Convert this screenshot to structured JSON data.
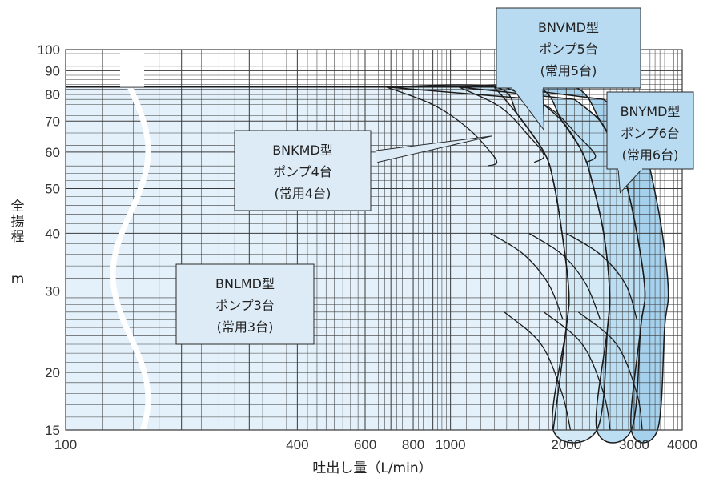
{
  "chart_data": {
    "type": "area",
    "title": "",
    "xlabel": "吐出し量（L/min）",
    "ylabel_chars": [
      "全",
      "揚",
      "程"
    ],
    "ylabel_unit": "m",
    "x_scale": "log",
    "y_scale": "log",
    "xlim": [
      100,
      4000
    ],
    "ylim": [
      15,
      100
    ],
    "x_tick_labels": [
      {
        "value": 100,
        "label": "100"
      },
      {
        "value": 400,
        "label": "400"
      },
      {
        "value": 600,
        "label": "600"
      },
      {
        "value": 800,
        "label": "800"
      },
      {
        "value": 1000,
        "label": "1000"
      },
      {
        "value": 2000,
        "label": "2000"
      },
      {
        "value": 3000,
        "label": "3000"
      },
      {
        "value": 4000,
        "label": "4000"
      }
    ],
    "y_tick_labels": [
      {
        "value": 15,
        "label": "15"
      },
      {
        "value": 20,
        "label": "20"
      },
      {
        "value": 30,
        "label": "30"
      },
      {
        "value": 40,
        "label": "40"
      },
      {
        "value": 50,
        "label": "50"
      },
      {
        "value": 60,
        "label": "60"
      },
      {
        "value": 70,
        "label": "70"
      },
      {
        "value": 80,
        "label": "80"
      },
      {
        "value": 90,
        "label": "90"
      },
      {
        "value": 100,
        "label": "100"
      }
    ],
    "grid": true,
    "axis_break": true,
    "bands": [
      {
        "name": "BNLMD",
        "color": "#e4f1fa",
        "h_max": 83,
        "top_curve": [
          [
            100,
            83
          ],
          [
            1300,
            83
          ]
        ],
        "tail": [
          [
            1300,
            83
          ],
          [
            1500,
            72
          ],
          [
            1750,
            60
          ],
          [
            1850,
            52
          ],
          [
            1950,
            40
          ],
          [
            2030,
            30
          ],
          [
            2000,
            25
          ],
          [
            1850,
            15
          ]
        ]
      },
      {
        "name": "BNKMD",
        "color": "#d3e9f6",
        "h_max": 83,
        "outline": [
          [
            680,
            83
          ],
          [
            1300,
            83
          ],
          [
            1500,
            72
          ],
          [
            1750,
            60
          ],
          [
            1850,
            52
          ],
          [
            1950,
            40
          ],
          [
            2030,
            30
          ],
          [
            2000,
            25
          ],
          [
            1850,
            15
          ],
          [
            2400,
            15
          ],
          [
            2560,
            25
          ],
          [
            2590,
            30
          ],
          [
            2500,
            40
          ],
          [
            2330,
            52
          ],
          [
            2200,
            60
          ],
          [
            1950,
            70
          ],
          [
            1680,
            78
          ]
        ],
        "curves": [
          [
            [
              680,
              83
            ],
            [
              900,
              76
            ],
            [
              1100,
              68
            ],
            [
              1250,
              61
            ],
            [
              1320,
              57
            ],
            [
              1250,
              56
            ]
          ],
          [
            [
              1270,
              40
            ],
            [
              1550,
              36
            ],
            [
              1800,
              31
            ],
            [
              1960,
              26
            ]
          ],
          [
            [
              1380,
              27
            ],
            [
              1720,
              23
            ],
            [
              1950,
              18
            ],
            [
              2050,
              15
            ]
          ]
        ]
      },
      {
        "name": "BNVMD",
        "color": "#bcdef2",
        "h_max": 83,
        "outline": [
          [
            1050,
            83
          ],
          [
            1680,
            83
          ],
          [
            1950,
            70
          ],
          [
            2200,
            60
          ],
          [
            2330,
            52
          ],
          [
            2500,
            40
          ],
          [
            2590,
            30
          ],
          [
            2560,
            25
          ],
          [
            2400,
            15
          ],
          [
            2950,
            15
          ],
          [
            3120,
            25
          ],
          [
            3200,
            30
          ],
          [
            3050,
            40
          ],
          [
            2850,
            52
          ],
          [
            2700,
            60
          ],
          [
            2450,
            70
          ],
          [
            2100,
            78
          ]
        ],
        "curves": [
          [
            [
              1050,
              83
            ],
            [
              1350,
              75
            ],
            [
              1600,
              65
            ],
            [
              1750,
              59
            ],
            [
              1650,
              57
            ]
          ],
          [
            [
              1600,
              40
            ],
            [
              1950,
              36
            ],
            [
              2250,
              31
            ],
            [
              2450,
              26
            ]
          ],
          [
            [
              1750,
              27
            ],
            [
              2200,
              23
            ],
            [
              2500,
              18
            ],
            [
              2600,
              15
            ]
          ]
        ]
      },
      {
        "name": "BNYMD",
        "color": "#a6d1ed",
        "h_max": 83,
        "outline": [
          [
            1380,
            83
          ],
          [
            2100,
            83
          ],
          [
            2450,
            70
          ],
          [
            2700,
            60
          ],
          [
            2850,
            52
          ],
          [
            3050,
            40
          ],
          [
            3200,
            30
          ],
          [
            3120,
            25
          ],
          [
            2950,
            15
          ],
          [
            3450,
            15
          ],
          [
            3600,
            25
          ],
          [
            3680,
            30
          ],
          [
            3550,
            40
          ],
          [
            3350,
            52
          ],
          [
            3200,
            60
          ],
          [
            2900,
            70
          ],
          [
            2500,
            78
          ]
        ],
        "curves": [
          [
            [
              1380,
              83
            ],
            [
              1800,
              75
            ],
            [
              2150,
              65
            ],
            [
              2380,
              59
            ],
            [
              2250,
              57
            ]
          ],
          [
            [
              2000,
              40
            ],
            [
              2450,
              36
            ],
            [
              2850,
              31
            ],
            [
              3050,
              26
            ]
          ],
          [
            [
              2150,
              27
            ],
            [
              2700,
              23
            ],
            [
              3050,
              18
            ],
            [
              3150,
              15
            ]
          ]
        ]
      }
    ],
    "callouts": [
      {
        "lines": [
          "BNKMD型",
          "ポンプ4台",
          "(常用4台)"
        ],
        "point": [
          1280,
          65
        ]
      },
      {
        "lines": [
          "BNVMD型",
          "ポンプ5台",
          "(常用5台)"
        ],
        "point": [
          1750,
          67
        ]
      },
      {
        "lines": [
          "BNYMD型",
          "ポンプ6台",
          "(常用6台)"
        ],
        "point": [
          2760,
          49
        ]
      },
      {
        "lines": [
          "BNLMD型",
          "ポンプ3台",
          "(常用3台)"
        ],
        "point": null
      }
    ],
    "colors": {
      "outline": "#1b1b1b",
      "grid": "#3a3a3a",
      "callout_fill": "#dcebf6",
      "callout_fill_alt": "#b9dbf1",
      "callout_stroke": "#2a2a2a"
    }
  }
}
